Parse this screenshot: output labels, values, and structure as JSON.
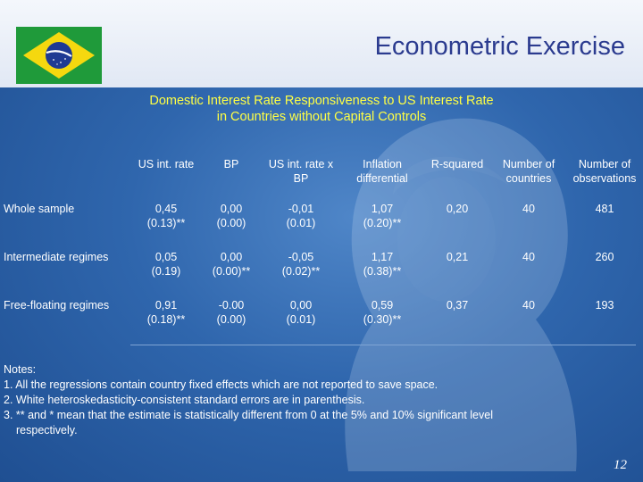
{
  "header": {
    "title": "Econometric Exercise",
    "flag": "brazil-flag"
  },
  "subtitle": {
    "line1": "Domestic Interest Rate Responsiveness to US Interest Rate",
    "line2": "in Countries without Capital  Controls"
  },
  "table": {
    "columns": [
      [
        "US int. rate"
      ],
      [
        "BP"
      ],
      [
        "US int. rate x",
        "BP"
      ],
      [
        "Inflation",
        "differential"
      ],
      [
        "R-squared"
      ],
      [
        "Number of",
        "countries"
      ],
      [
        "Number of",
        "observations"
      ]
    ],
    "rows": [
      {
        "label": "Whole sample",
        "cells": [
          [
            "0,45",
            "(0.13)**"
          ],
          [
            "0,00",
            "(0.00)"
          ],
          [
            "-0,01",
            "(0.01)"
          ],
          [
            "1,07",
            "(0.20)**"
          ],
          [
            "0,20"
          ],
          [
            "40"
          ],
          [
            "481"
          ]
        ]
      },
      {
        "label": "Intermediate regimes",
        "cells": [
          [
            "0,05",
            "(0.19)"
          ],
          [
            "0,00",
            "(0.00)**"
          ],
          [
            "-0,05",
            "(0.02)**"
          ],
          [
            "1,17",
            "(0.38)**"
          ],
          [
            "0,21"
          ],
          [
            "40"
          ],
          [
            "260"
          ]
        ]
      },
      {
        "label": "Free-floating regimes",
        "cells": [
          [
            "0,91",
            "(0.18)**"
          ],
          [
            "-0.00",
            "(0.00)"
          ],
          [
            "0,00",
            "(0.01)"
          ],
          [
            "0,59",
            "(0.30)**"
          ],
          [
            "0,37"
          ],
          [
            "40"
          ],
          [
            "193"
          ]
        ]
      }
    ]
  },
  "notes": {
    "heading": "Notes:",
    "items": [
      "1. All the regressions contain country fixed effects which are not reported to save space.",
      "2. White heteroskedasticity-consistent standard errors are in parenthesis.",
      "3. ** and * mean that the estimate is statistically different from 0 at the 5%  and 10%  significant level",
      "respectively."
    ]
  },
  "page_number": "12",
  "colors": {
    "background": "#2f66ad",
    "header_band": "#eaf0f8",
    "title": "#2b3b8f",
    "subtitle": "#ffff44",
    "flag_green": "#1f9a3a",
    "flag_yellow": "#f5d80f",
    "flag_blue": "#1f3a93"
  }
}
